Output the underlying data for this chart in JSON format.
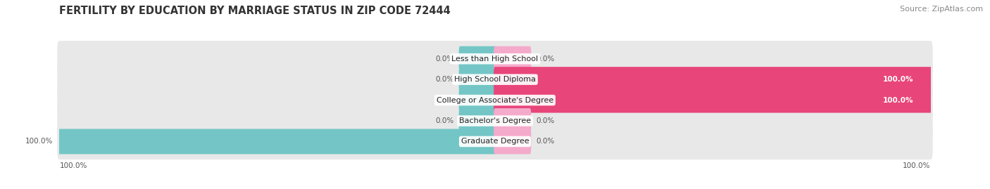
{
  "title": "FERTILITY BY EDUCATION BY MARRIAGE STATUS IN ZIP CODE 72444",
  "source": "Source: ZipAtlas.com",
  "categories": [
    "Less than High School",
    "High School Diploma",
    "College or Associate's Degree",
    "Bachelor's Degree",
    "Graduate Degree"
  ],
  "married_values": [
    0.0,
    0.0,
    0.0,
    0.0,
    100.0
  ],
  "unmarried_values": [
    0.0,
    100.0,
    100.0,
    0.0,
    0.0
  ],
  "married_color": "#74C6C6",
  "unmarried_color_full": "#E8457A",
  "unmarried_color_light": "#F4AACB",
  "background_color": "#FFFFFF",
  "bar_bg_color": "#E8E8E8",
  "bar_height": 0.62,
  "title_fontsize": 10.5,
  "label_fontsize": 8.0,
  "value_fontsize": 7.5,
  "legend_fontsize": 9,
  "source_fontsize": 8,
  "stub_pct": 8,
  "bottom_left_label": "100.0%",
  "bottom_right_label": "100.0%"
}
